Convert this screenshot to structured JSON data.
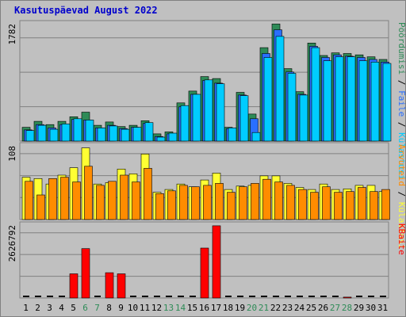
{
  "title": "Kasutuspäevad August 2022",
  "colors": {
    "panel_bg": "#c0c0c0",
    "panel_border": "#808080",
    "grid": "#808080",
    "hits": "#00ccff",
    "files": "#2a6fff",
    "pages": "#2e8b57",
    "visits": "#ff8c00",
    "sites": "#ffff33",
    "kbytes": "#ff0000",
    "weekend_label": "#2e8b57",
    "weekday_label": "#000000"
  },
  "chart_data": {
    "type": "bar",
    "title": "Kasutuspäevad August 2022",
    "x": [
      1,
      2,
      3,
      4,
      5,
      6,
      7,
      8,
      9,
      10,
      11,
      12,
      13,
      14,
      15,
      16,
      17,
      18,
      19,
      20,
      21,
      22,
      23,
      24,
      25,
      26,
      27,
      28,
      29,
      30,
      31
    ],
    "weekend_days": [
      6,
      7,
      13,
      14,
      20,
      21,
      27,
      28
    ],
    "panels": [
      {
        "id": "top",
        "ylabel": "1782",
        "ymax": 1782,
        "right_labels": [
          {
            "text": "Pöördumisi",
            "color": "#2e8b57"
          },
          {
            "text": " / ",
            "color": "#000000"
          },
          {
            "text": "Faile",
            "color": "#2a6fff"
          },
          {
            "text": " / ",
            "color": "#000000"
          },
          {
            "text": "Külastusi",
            "color": "#00ccff"
          }
        ],
        "series": [
          {
            "key": "pages",
            "color": "#2e8b57",
            "values": [
              210,
              300,
              250,
              300,
              370,
              440,
              240,
              290,
              220,
              240,
              310,
              110,
              140,
              580,
              760,
              980,
              950,
              210,
              740,
              410,
              1420,
              1780,
              1100,
              750,
              1490,
              1300,
              1340,
              1330,
              1310,
              1280,
              1240
            ]
          },
          {
            "key": "files",
            "color": "#2a6fff",
            "values": [
              170,
              250,
              200,
              250,
              330,
              320,
              200,
              240,
              190,
              210,
              270,
              70,
              110,
              520,
              710,
              920,
              880,
              190,
              700,
              340,
              1330,
              1690,
              1050,
              710,
              1440,
              1270,
              1310,
              1290,
              1270,
              1240,
              1200
            ]
          },
          {
            "key": "hits",
            "color": "#00ccff",
            "values": [
              160,
              240,
              180,
              260,
              340,
              320,
              200,
              230,
              180,
              210,
              280,
              60,
              120,
              540,
              710,
              930,
              870,
              200,
              690,
              130,
              1270,
              1590,
              1030,
              700,
              1420,
              1220,
              1280,
              1280,
              1220,
              1200,
              1180
            ]
          }
        ]
      },
      {
        "id": "middle",
        "ylabel": "108",
        "ymax": 108,
        "right_labels": [
          {
            "text": "Arvuteid",
            "color": "#ff8c00"
          },
          {
            "text": " / ",
            "color": "#000000"
          },
          {
            "text": "Külastusi",
            "color": "#ffff33"
          }
        ],
        "series": [
          {
            "key": "sites",
            "color": "#ffff33",
            "values": [
              62,
              60,
              52,
              65,
              76,
              105,
              52,
              54,
              74,
              67,
              96,
              40,
              44,
              52,
              48,
              58,
              68,
              44,
              49,
              50,
              64,
              64,
              53,
              47,
              44,
              52,
              44,
              45,
              50,
              50,
              41
            ]
          },
          {
            "key": "visits",
            "color": "#ff8c00",
            "values": [
              56,
              36,
              60,
              62,
              55,
              78,
              50,
              56,
              65,
              55,
              75,
              38,
              42,
              50,
              48,
              50,
              53,
              40,
              48,
              53,
              59,
              55,
              50,
              44,
              40,
              48,
              40,
              41,
              47,
              41,
              44
            ]
          }
        ]
      },
      {
        "id": "bottom",
        "ylabel": "2626792",
        "ymax": 2626792,
        "right_labels": [
          {
            "text": "KBaite",
            "color": "#ff0000"
          }
        ],
        "series": [
          {
            "key": "kbytes",
            "color": "#ff0000",
            "values": [
              0,
              0,
              0,
              0,
              870000,
              1780000,
              0,
              910000,
              870000,
              0,
              0,
              0,
              0,
              0,
              0,
              1800000,
              2600000,
              0,
              0,
              0,
              0,
              0,
              0,
              0,
              0,
              0,
              0,
              30000,
              0,
              0,
              0
            ]
          }
        ]
      }
    ]
  }
}
